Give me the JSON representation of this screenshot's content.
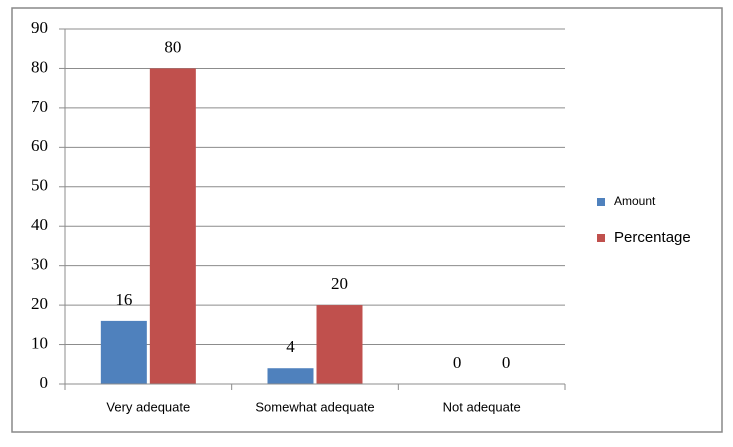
{
  "chart_data": {
    "type": "bar",
    "categories": [
      "Very adequate",
      "Somewhat adequate",
      "Not adequate"
    ],
    "series": [
      {
        "name": "Amount",
        "color": "#4f81bd",
        "values": [
          16,
          4,
          0
        ]
      },
      {
        "name": "Percentage",
        "color": "#c0504d",
        "values": [
          80,
          20,
          0
        ]
      }
    ],
    "ylim": [
      0,
      90
    ],
    "yticks": [
      0,
      10,
      20,
      30,
      40,
      50,
      60,
      70,
      80,
      90
    ],
    "grid": true,
    "legend": "right"
  }
}
